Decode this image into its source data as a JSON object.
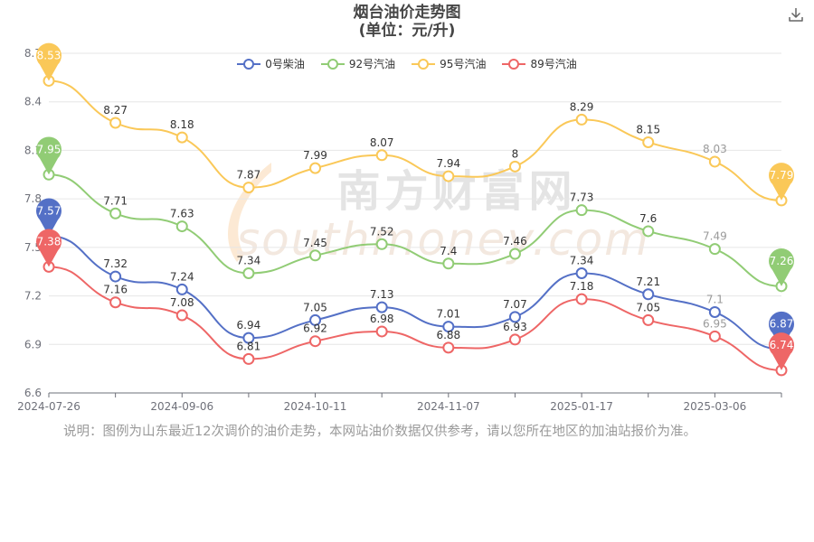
{
  "chart_data": {
    "type": "line",
    "title": "烟台油价走势图",
    "subtitle": "(单位：元/升)",
    "x": [
      "2024-07-26",
      "",
      "2024-09-06",
      "",
      "2024-10-11",
      "",
      "2024-11-07",
      "",
      "2025-01-17",
      "",
      "2025-03-06",
      ""
    ],
    "x_tick_labels": [
      "2024-07-26",
      "2024-09-06",
      "2024-10-11",
      "2024-11-07",
      "2025-01-17",
      "2025-03-06"
    ],
    "y_tick_labels": [
      "6.6",
      "6.9",
      "7.2",
      "7.5",
      "7.8",
      "8.1",
      "8.4",
      "8.7"
    ],
    "ylim": [
      6.6,
      8.7
    ],
    "grid": true,
    "legend_position": "top",
    "series": [
      {
        "name": "0号柴油",
        "color": "#5470c6",
        "values": [
          7.57,
          7.32,
          7.24,
          6.94,
          7.05,
          7.13,
          7.01,
          7.07,
          7.34,
          7.21,
          7.1,
          6.87
        ],
        "labels": [
          "7.57",
          "7.32",
          "7.24",
          "6.94",
          "7.05",
          "7.13",
          "7.01",
          "7.07",
          "7.34",
          "7.21",
          "7.1",
          "6.87"
        ]
      },
      {
        "name": "92号汽油",
        "color": "#91cc75",
        "values": [
          7.95,
          7.71,
          7.63,
          7.34,
          7.45,
          7.52,
          7.4,
          7.46,
          7.73,
          7.6,
          7.49,
          7.26
        ],
        "labels": [
          "7.95",
          "7.71",
          "7.63",
          "7.34",
          "7.45",
          "7.52",
          "7.4",
          "7.46",
          "7.73",
          "7.6",
          "7.49",
          "7.26"
        ]
      },
      {
        "name": "95号汽油",
        "color": "#fac858",
        "values": [
          8.53,
          8.27,
          8.18,
          7.87,
          7.99,
          8.07,
          7.94,
          8,
          8.29,
          8.15,
          8.03,
          7.79
        ],
        "labels": [
          "8.53",
          "8.27",
          "8.18",
          "7.87",
          "7.99",
          "8.07",
          "7.94",
          "8",
          "8.29",
          "8.15",
          "8.03",
          "7.79"
        ]
      },
      {
        "name": "89号汽油",
        "color": "#ee6666",
        "values": [
          7.38,
          7.16,
          7.08,
          6.81,
          6.92,
          6.98,
          6.88,
          6.93,
          7.18,
          7.05,
          6.95,
          6.74
        ],
        "labels": [
          "7.38",
          "7.16",
          "7.08",
          "6.81",
          "6.92",
          "6.98",
          "6.88",
          "6.93",
          "7.18",
          "7.05",
          "6.95",
          "6.74"
        ]
      }
    ],
    "watermark": "南方财富网 southmoney.com"
  },
  "note": "说明：图例为山东最近12次调价的油价走势，本网站油价数据仅供参考，请以您所在地区的加油站报价为准。",
  "icons": {
    "download": "download-icon",
    "legend_marker": "circle-line-marker",
    "pin": "map-pin-marker"
  }
}
